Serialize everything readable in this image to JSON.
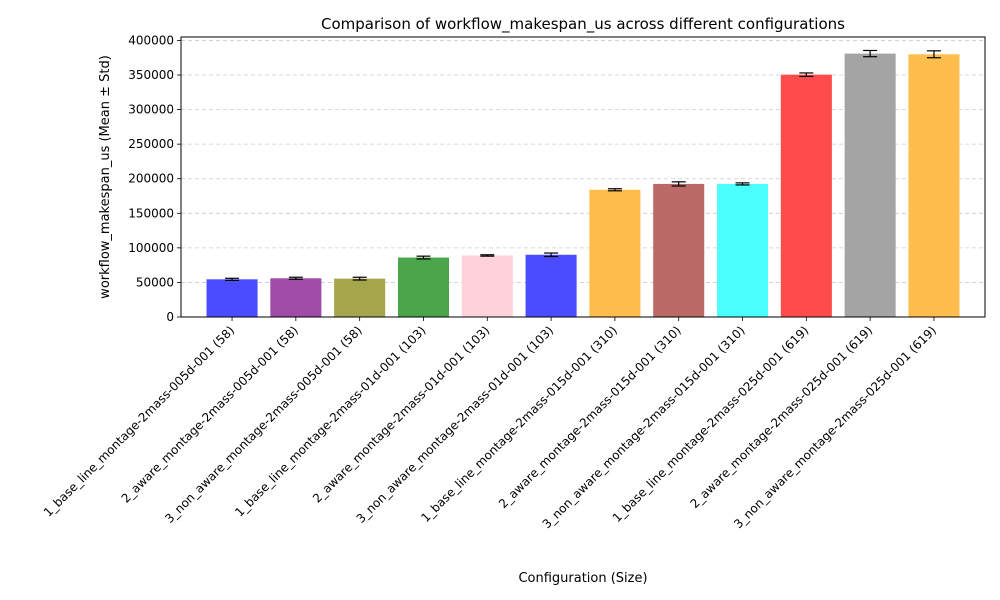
{
  "chart_data": {
    "type": "bar",
    "title": "Comparison of workflow_makespan_us across different configurations",
    "xlabel": "Configuration (Size)",
    "ylabel": "workflow_makespan_us (Mean ± Std)",
    "ylim": [
      0,
      405000
    ],
    "yticks": [
      0,
      50000,
      100000,
      150000,
      200000,
      250000,
      300000,
      350000,
      400000
    ],
    "grid": "y-dashed",
    "categories": [
      "1_base_line_montage-2mass-005d-001 (58)",
      "2_aware_montage-2mass-005d-001 (58)",
      "3_non_aware_montage-2mass-005d-001 (58)",
      "1_base_line_montage-2mass-01d-001 (103)",
      "2_aware_montage-2mass-01d-001 (103)",
      "3_non_aware_montage-2mass-01d-001 (103)",
      "1_base_line_montage-2mass-015d-001 (310)",
      "2_aware_montage-2mass-015d-001 (310)",
      "3_non_aware_montage-2mass-015d-001 (310)",
      "1_base_line_montage-2mass-025d-001 (619)",
      "2_aware_montage-2mass-025d-001 (619)",
      "3_non_aware_montage-2mass-025d-001 (619)"
    ],
    "values": [
      54500,
      56000,
      55500,
      86000,
      89000,
      90000,
      184000,
      192500,
      192500,
      350500,
      381000,
      380000
    ],
    "errors": [
      1500,
      1500,
      2000,
      2000,
      1000,
      2500,
      1500,
      3000,
      1500,
      2500,
      4500,
      5000
    ],
    "colors": [
      "#4b4bff",
      "#a04ba6",
      "#a5a64b",
      "#4ba64b",
      "#ffd1db",
      "#4b4bff",
      "#ffbe4b",
      "#bc6a68",
      "#4bffff",
      "#ff4b4b",
      "#a4a4a4",
      "#ffbe4b"
    ]
  }
}
